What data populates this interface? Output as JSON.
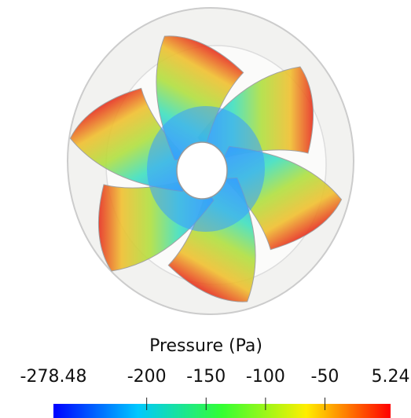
{
  "colorbar": {
    "title": "Pressure (Pa)",
    "range": [
      -278.48,
      5.24
    ],
    "ticks": [
      -200,
      -150,
      -100,
      -50
    ]
  }
}
